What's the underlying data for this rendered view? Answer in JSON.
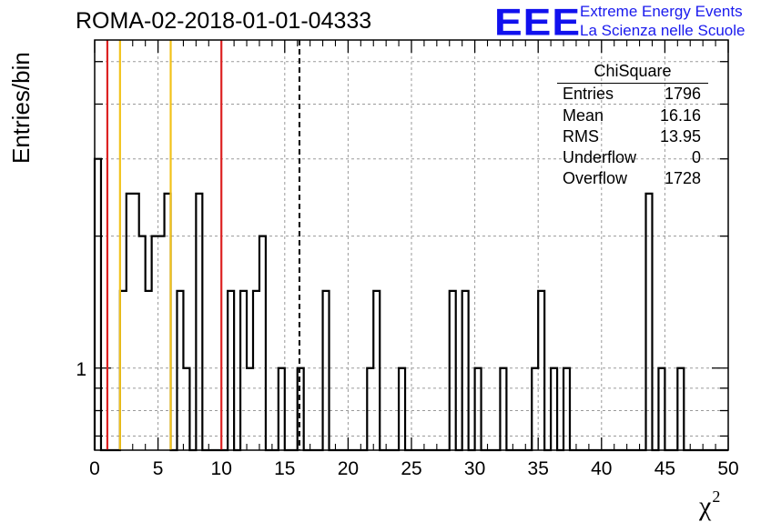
{
  "chart_data": {
    "type": "bar",
    "title": "ROMA-02-2018-01-01-04333",
    "xlabel": "χ",
    "xlabel_sup": "2",
    "ylabel": "Entries/bin",
    "xlim": [
      0,
      50
    ],
    "ylim": [
      0.65,
      5.6
    ],
    "yscale": "log",
    "bin_width": 0.5,
    "grid": true,
    "x_ticks": [
      0,
      5,
      10,
      15,
      20,
      25,
      30,
      35,
      40,
      45,
      50
    ],
    "y_tick_labels": [
      {
        "value": 1,
        "label": "1"
      }
    ],
    "bins": [
      {
        "x": 0.0,
        "y": 3
      },
      {
        "x": 2.0,
        "y": 1.5
      },
      {
        "x": 2.5,
        "y": 2.5
      },
      {
        "x": 3.0,
        "y": 2.5
      },
      {
        "x": 3.5,
        "y": 2
      },
      {
        "x": 4.0,
        "y": 1.5
      },
      {
        "x": 4.5,
        "y": 2
      },
      {
        "x": 5.0,
        "y": 2
      },
      {
        "x": 5.5,
        "y": 2.5
      },
      {
        "x": 6.5,
        "y": 1.5
      },
      {
        "x": 7.0,
        "y": 1
      },
      {
        "x": 8.0,
        "y": 2.5
      },
      {
        "x": 10.5,
        "y": 1.5
      },
      {
        "x": 11.5,
        "y": 1.5
      },
      {
        "x": 12.0,
        "y": 1
      },
      {
        "x": 12.5,
        "y": 1.5
      },
      {
        "x": 13.0,
        "y": 2
      },
      {
        "x": 14.5,
        "y": 1
      },
      {
        "x": 16.0,
        "y": 1
      },
      {
        "x": 18.0,
        "y": 1.5
      },
      {
        "x": 21.5,
        "y": 1
      },
      {
        "x": 22.0,
        "y": 1.5
      },
      {
        "x": 24.0,
        "y": 1
      },
      {
        "x": 28.0,
        "y": 1.5
      },
      {
        "x": 29.0,
        "y": 1.5
      },
      {
        "x": 30.0,
        "y": 1
      },
      {
        "x": 32.0,
        "y": 1
      },
      {
        "x": 34.5,
        "y": 1
      },
      {
        "x": 35.0,
        "y": 1.5
      },
      {
        "x": 36.0,
        "y": 1
      },
      {
        "x": 37.0,
        "y": 1
      },
      {
        "x": 43.5,
        "y": 2.5
      },
      {
        "x": 44.5,
        "y": 1
      },
      {
        "x": 46.0,
        "y": 1
      }
    ],
    "reference_lines": [
      {
        "x": 1.0,
        "color": "#dd2222",
        "style": "solid"
      },
      {
        "x": 2.0,
        "color": "#f2c21a",
        "style": "solid"
      },
      {
        "x": 6.0,
        "color": "#f2c21a",
        "style": "solid"
      },
      {
        "x": 10.0,
        "color": "#dd2222",
        "style": "solid"
      },
      {
        "x": 16.16,
        "color": "#000000",
        "style": "dashed"
      }
    ]
  },
  "stats": {
    "title": "ChiSquare",
    "rows": [
      {
        "label": "Entries",
        "value": "1796"
      },
      {
        "label": "Mean",
        "value": "16.16"
      },
      {
        "label": "RMS",
        "value": "13.95"
      },
      {
        "label": "Underflow",
        "value": "0"
      },
      {
        "label": "Overflow",
        "value": "1728"
      }
    ]
  },
  "logo": {
    "mark": "EEE",
    "line1": "Extreme Energy Events",
    "line2": "La Scienza nelle Scuole",
    "color": "#1111ee"
  }
}
